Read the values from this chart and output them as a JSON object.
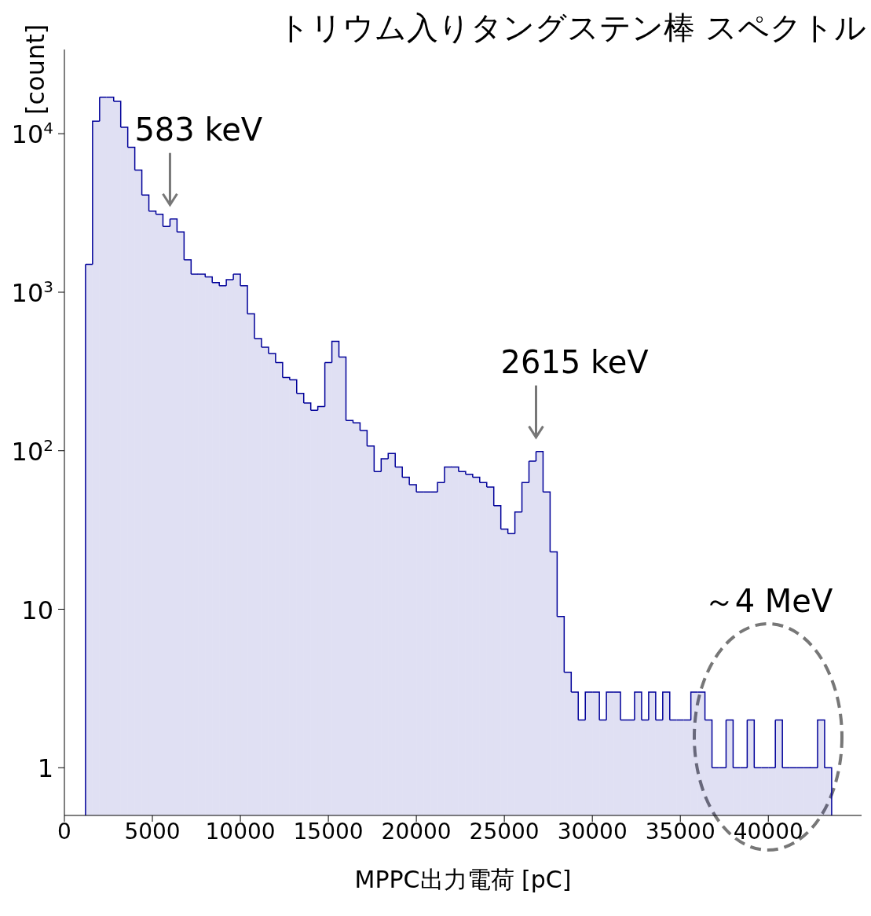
{
  "chart_data": {
    "type": "histogram",
    "title": "トリウム入りタングステン棒 スペクトル",
    "xlabel": "MPPC出力電荷 [pC]",
    "ylabel": "[count]",
    "color": "#000099",
    "bins": [
      1200,
      1600,
      2000,
      2400,
      2800,
      3200,
      3600,
      4000,
      4400,
      4800,
      5200,
      5600,
      6000,
      6400,
      6800,
      7200,
      7600,
      8000,
      8400,
      8800,
      9200,
      9600,
      10000,
      10400,
      10800,
      11200,
      11600,
      12000,
      12400,
      12800,
      13200,
      13600,
      14000,
      14400,
      14800,
      15200,
      15600,
      16000,
      16400,
      16800,
      17200,
      17600,
      18000,
      18400,
      18800,
      19200,
      19600,
      20000,
      20400,
      20800,
      21200,
      21600,
      22000,
      22400,
      22800,
      23200,
      23600,
      24000,
      24400,
      24800,
      25200,
      25600,
      26000,
      26400,
      26800,
      27200,
      27600,
      28000,
      28400,
      28800,
      29200,
      29600,
      30000,
      30400,
      30800,
      31200,
      31600,
      32000,
      32400,
      32800,
      33200,
      33600,
      34000,
      34400,
      34800,
      35200,
      35600,
      36000,
      36400,
      36800,
      37200,
      37600,
      38000,
      38400,
      38800,
      39200,
      39600,
      40000,
      40400,
      40800,
      41200,
      41600,
      42000,
      42400,
      42800,
      43200,
      43600
    ],
    "values": [
      1500,
      12000,
      17000,
      17000,
      16000,
      11000,
      8200,
      5900,
      4100,
      3250,
      3100,
      2600,
      2900,
      2400,
      1600,
      1300,
      1300,
      1250,
      1150,
      1100,
      1200,
      1300,
      1100,
      730,
      510,
      450,
      410,
      360,
      290,
      280,
      230,
      200,
      180,
      190,
      360,
      490,
      390,
      155,
      150,
      134,
      107,
      74,
      89,
      96,
      79,
      68,
      61,
      55,
      55,
      55,
      63,
      79,
      79,
      74,
      71,
      68,
      63,
      59,
      45,
      32,
      30,
      41,
      63,
      86,
      99,
      55,
      23,
      9,
      4,
      3,
      2,
      3,
      3,
      2,
      3,
      3,
      2,
      2,
      3,
      2,
      3,
      2,
      3,
      2,
      2,
      2,
      3,
      3,
      2,
      1,
      1,
      2,
      1,
      1,
      2,
      1,
      1,
      1,
      2,
      1,
      1,
      1,
      1,
      1,
      2,
      1
    ],
    "log": "y",
    "xlim": [
      0,
      45300
    ],
    "xticks": [
      0,
      5000,
      10000,
      15000,
      20000,
      25000,
      30000,
      35000,
      40000
    ],
    "ylim": [
      0.5,
      34000
    ],
    "yticks": [
      {
        "value": 1,
        "label": "1"
      },
      {
        "value": 10,
        "label": "10"
      },
      {
        "value": 100,
        "label": "10$^{2}$"
      },
      {
        "value": 1000,
        "label": "10$^{3}$"
      },
      {
        "value": 10000,
        "label": "10$^{4}$"
      }
    ],
    "annotations": [
      {
        "text": "583 keV",
        "x": 6000,
        "y": 2900
      },
      {
        "text": "2615 keV",
        "x": 26800,
        "y": 99
      },
      "～4 MeV"
    ],
    "grid": false
  }
}
